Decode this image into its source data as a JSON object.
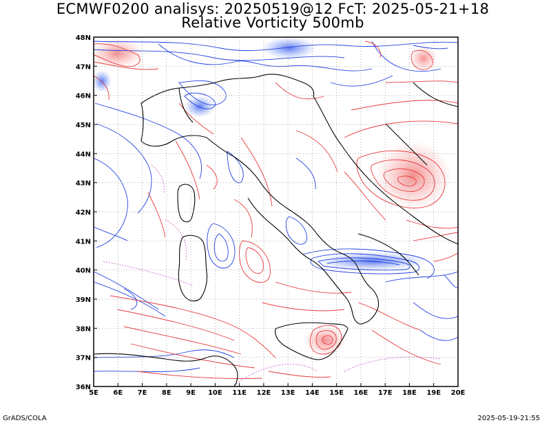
{
  "header": {
    "title": "ECMWF0200 analisys: 20250519@12 FcT: 2025-05-21+18",
    "subtitle": "Relative Vorticity 500mb"
  },
  "footer": {
    "credit": "GrADS/COLA",
    "timestamp": "2025-05-19-21:55"
  },
  "map": {
    "lon_range": [
      5,
      20
    ],
    "lat_range": [
      36,
      48
    ],
    "lon_ticks": [
      "5E",
      "6E",
      "7E",
      "8E",
      "9E",
      "10E",
      "11E",
      "12E",
      "13E",
      "14E",
      "15E",
      "16E",
      "17E",
      "18E",
      "19E",
      "20E"
    ],
    "lat_ticks": [
      "36N",
      "37N",
      "38N",
      "39N",
      "40N",
      "41N",
      "42N",
      "43N",
      "44N",
      "45N",
      "46N",
      "47N",
      "48N"
    ],
    "colors": {
      "positive": "#e8373a",
      "positive_fill": "#f7a8a8",
      "negative": "#2040e0",
      "negative_fill": "#7f9af5",
      "zero": "#c050c0",
      "coast": "#000000",
      "grid": "#888888"
    }
  }
}
